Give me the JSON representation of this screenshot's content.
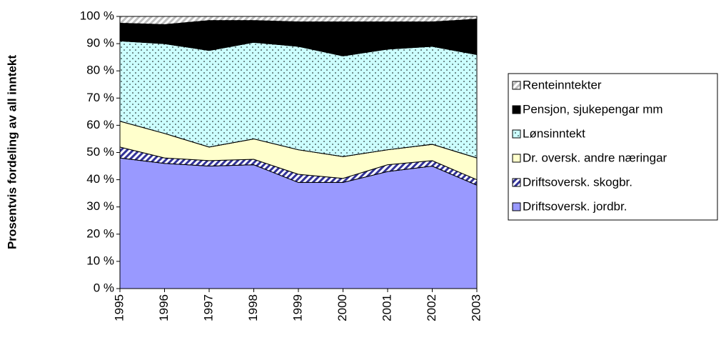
{
  "chart_data": {
    "type": "stacked_area",
    "y_label": "Prosentvis fordeling av all inntekt",
    "categories": [
      "1995",
      "1996",
      "1997",
      "1998",
      "1999",
      "2000",
      "2001",
      "2002",
      "2003"
    ],
    "series": [
      {
        "name": "Driftsoversk. jordbr.",
        "color": "#9999ff",
        "values": [
          48,
          46,
          45,
          45.5,
          39,
          39,
          43,
          45,
          38
        ]
      },
      {
        "name": "Driftsoversk. skogbr.",
        "color": "#333399",
        "values": [
          4,
          2,
          2,
          2,
          3,
          1.5,
          2.5,
          2,
          2
        ]
      },
      {
        "name": "Dr. oversk. andre næringar",
        "color": "#ffffcc",
        "values": [
          9.5,
          9,
          5,
          7.5,
          9,
          8,
          5.5,
          6,
          8
        ]
      },
      {
        "name": "Lønsinntekt",
        "color": "#ccffff",
        "values": [
          29.5,
          33,
          35.5,
          35.5,
          38,
          37,
          37,
          36,
          38
        ]
      },
      {
        "name": "Pensjon, sjukepengar mm",
        "color": "#000000",
        "values": [
          6.5,
          7,
          11,
          8,
          9,
          12.5,
          10,
          9,
          13
        ]
      },
      {
        "name": "Renteinntekter",
        "color": "#c0c0c0",
        "values": [
          2.5,
          3,
          1.5,
          1.5,
          2,
          2,
          2,
          2,
          1
        ]
      }
    ],
    "ylim": [
      0,
      100
    ],
    "yticks": [
      {
        "value": 0,
        "label": "0 %"
      },
      {
        "value": 10,
        "label": "10 %"
      },
      {
        "value": 20,
        "label": "20 %"
      },
      {
        "value": 30,
        "label": "30 %"
      },
      {
        "value": 40,
        "label": "40 %"
      },
      {
        "value": 50,
        "label": "50 %"
      },
      {
        "value": 60,
        "label": "60 %"
      },
      {
        "value": 70,
        "label": "70 %"
      },
      {
        "value": 80,
        "label": "80 %"
      },
      {
        "value": 90,
        "label": "90 %"
      },
      {
        "value": 100,
        "label": "100 %"
      }
    ],
    "legend": "right"
  }
}
